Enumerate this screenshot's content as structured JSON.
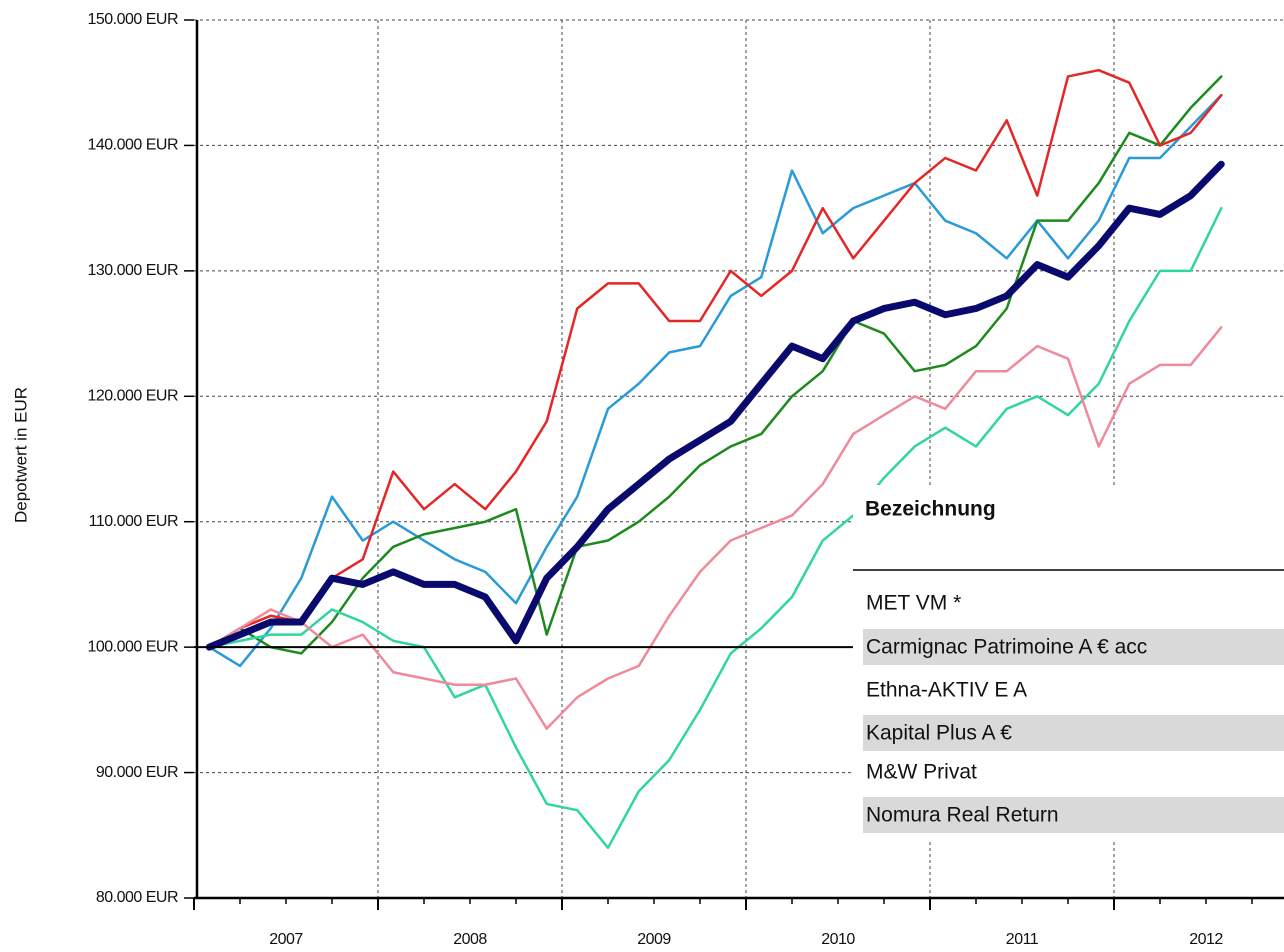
{
  "chart_data": {
    "type": "line",
    "y_label": "Depotwert in EUR",
    "x": [
      2007.083,
      2007.25,
      2007.417,
      2007.583,
      2007.75,
      2007.917,
      2008.083,
      2008.25,
      2008.417,
      2008.583,
      2008.75,
      2008.917,
      2009.083,
      2009.25,
      2009.417,
      2009.583,
      2009.75,
      2009.917,
      2010.083,
      2010.25,
      2010.417,
      2010.583,
      2010.75,
      2010.917,
      2011.083,
      2011.25,
      2011.417,
      2011.583,
      2011.75,
      2011.917,
      2012.083,
      2012.25,
      2012.417,
      2012.583
    ],
    "xlim": [
      2007,
      2013
    ],
    "xticks": [
      2007,
      2008,
      2009,
      2010,
      2011,
      2012
    ],
    "ylim": [
      80000,
      150000
    ],
    "yticks": [
      {
        "value": 80000,
        "label": "80.000 EUR"
      },
      {
        "value": 90000,
        "label": "90.000 EUR"
      },
      {
        "value": 100000,
        "label": "100.000 EUR"
      },
      {
        "value": 110000,
        "label": "110.000 EUR"
      },
      {
        "value": 120000,
        "label": "120.000 EUR"
      },
      {
        "value": 130000,
        "label": "130.000 EUR"
      },
      {
        "value": 140000,
        "label": "140.000 EUR"
      },
      {
        "value": 150000,
        "label": "150.000 EUR"
      }
    ],
    "baseline": 100000,
    "grid": true,
    "legend": {
      "title": "Bezeichnung",
      "position": "lower right"
    },
    "series": [
      {
        "name": "MET VM *",
        "color": "#0a0a6e",
        "width": 7,
        "values": [
          100000,
          101000,
          102000,
          102000,
          105500,
          105000,
          106000,
          105000,
          105000,
          104000,
          100500,
          105500,
          108000,
          111000,
          113000,
          115000,
          116500,
          118000,
          121000,
          124000,
          123000,
          126000,
          127000,
          127500,
          126500,
          127000,
          128000,
          130500,
          129500,
          132000,
          135000,
          134500,
          136000,
          138500
        ]
      },
      {
        "name": "Carmignac Patrimoine A € acc",
        "color": "#2a9ad8",
        "width": 2.5,
        "values": [
          100000,
          98500,
          101500,
          105500,
          112000,
          108500,
          110000,
          108500,
          107000,
          106000,
          103500,
          108000,
          112000,
          119000,
          121000,
          123500,
          124000,
          128000,
          129500,
          138000,
          133000,
          135000,
          136000,
          137000,
          134000,
          133000,
          131000,
          134000,
          131000,
          134000,
          139000,
          139000,
          141500,
          144000
        ]
      },
      {
        "name": "Ethna-AKTIV E A",
        "color": "#1e8a1e",
        "width": 2.5,
        "values": [
          100000,
          101500,
          100000,
          99500,
          102000,
          105500,
          108000,
          109000,
          109500,
          110000,
          111000,
          101000,
          108000,
          108500,
          110000,
          112000,
          114500,
          116000,
          117000,
          120000,
          122000,
          126000,
          125000,
          122000,
          122500,
          124000,
          127000,
          134000,
          134000,
          137000,
          141000,
          140000,
          143000,
          145500
        ]
      },
      {
        "name": "Kapital Plus A €",
        "color": "#e52626",
        "width": 2.5,
        "values": [
          100000,
          101500,
          102500,
          102000,
          105500,
          107000,
          114000,
          111000,
          113000,
          111000,
          114000,
          118000,
          127000,
          129000,
          129000,
          126000,
          126000,
          130000,
          128000,
          130000,
          135000,
          131000,
          134000,
          137000,
          139000,
          138000,
          142000,
          136000,
          145500,
          146000,
          145000,
          140000,
          141000,
          144000
        ]
      },
      {
        "name": "M&W Privat",
        "color": "#30d6a0",
        "width": 2.5,
        "values": [
          100000,
          100500,
          101000,
          101000,
          103000,
          102000,
          100500,
          100000,
          96000,
          97000,
          92000,
          87500,
          87000,
          84000,
          88500,
          91000,
          95000,
          99500,
          101500,
          104000,
          108500,
          110500,
          113500,
          116000,
          117500,
          116000,
          119000,
          120000,
          118500,
          121000,
          126000,
          130000,
          130000,
          135000
        ]
      },
      {
        "name": "Nomura Real Return",
        "color": "#f08a9a",
        "width": 2.5,
        "values": [
          100000,
          101500,
          103000,
          102000,
          100000,
          101000,
          98000,
          97500,
          97000,
          97000,
          97500,
          93500,
          96000,
          97500,
          98500,
          102500,
          106000,
          108500,
          109500,
          110500,
          113000,
          117000,
          118500,
          120000,
          119000,
          122000,
          122000,
          124000,
          123000,
          116000,
          121000,
          122500,
          122500,
          125500
        ]
      }
    ]
  }
}
